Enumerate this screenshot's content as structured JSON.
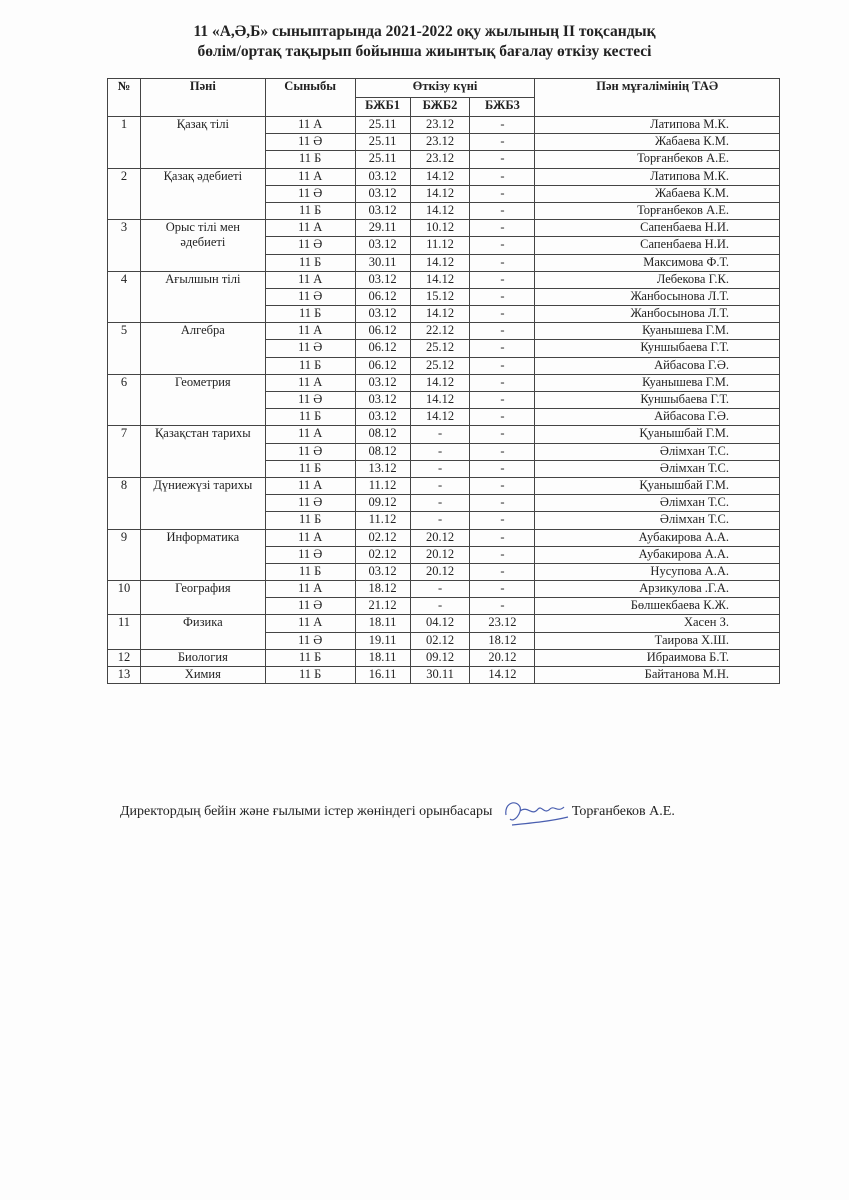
{
  "title": {
    "line1": "11 «А,Ә,Б» сыныптарында 2021-2022 оқу жылының II тоқсандық",
    "line2": "бөлім/ортақ тақырып бойынша жиынтық бағалау өткізу кестесі"
  },
  "table": {
    "headers": {
      "no": "№",
      "subject": "Пәні",
      "class": "Сыныбы",
      "date_group": "Өткізу күні",
      "bzhb1": "БЖБ1",
      "bzhb2": "БЖБ2",
      "bzhb3": "БЖБ3",
      "teacher": "Пән мұғалімінің ТАӘ"
    },
    "groups": [
      {
        "no": "1",
        "subject": "Қазақ тілі",
        "rows": [
          [
            "11 А",
            "25.11",
            "23.12",
            "-",
            "Латипова М.К."
          ],
          [
            "11 Ә",
            "25.11",
            "23.12",
            "-",
            "Жабаева К.М."
          ],
          [
            "11 Б",
            "25.11",
            "23.12",
            "-",
            "Торғанбеков А.Е."
          ]
        ]
      },
      {
        "no": "2",
        "subject": "Қазақ әдебиеті",
        "rows": [
          [
            "11 А",
            "03.12",
            "14.12",
            "-",
            "Латипова М.К."
          ],
          [
            "11 Ә",
            "03.12",
            "14.12",
            "-",
            "Жабаева К.М."
          ],
          [
            "11 Б",
            "03.12",
            "14.12",
            "-",
            "Торғанбеков А.Е."
          ]
        ]
      },
      {
        "no": "3",
        "subject": "Орыс тілі мен әдебиеті",
        "rows": [
          [
            "11 А",
            "29.11",
            "10.12",
            "-",
            "Сапенбаева Н.И."
          ],
          [
            "11 Ә",
            "03.12",
            "11.12",
            "-",
            "Сапенбаева Н.И."
          ],
          [
            "11 Б",
            "30.11",
            "14.12",
            "-",
            "Максимова Ф.Т."
          ]
        ]
      },
      {
        "no": "4",
        "subject": "Ағылшын тілі",
        "rows": [
          [
            "11 А",
            "03.12",
            "14.12",
            "-",
            "Лебекова Г.К."
          ],
          [
            "11 Ә",
            "06.12",
            "15.12",
            "-",
            "Жанбосынова Л.Т."
          ],
          [
            "11 Б",
            "03.12",
            "14.12",
            "-",
            "Жанбосынова Л.Т."
          ]
        ]
      },
      {
        "no": "5",
        "subject": "Алгебра",
        "rows": [
          [
            "11 А",
            "06.12",
            "22.12",
            "-",
            "Куанышева Г.М."
          ],
          [
            "11 Ә",
            "06.12",
            "25.12",
            "-",
            "Куншыбаева Г.Т."
          ],
          [
            "11 Б",
            "06.12",
            "25.12",
            "-",
            "Айбасова Г.Ә."
          ]
        ]
      },
      {
        "no": "6",
        "subject": "Геометрия",
        "rows": [
          [
            "11 А",
            "03.12",
            "14.12",
            "-",
            "Куанышева Г.М."
          ],
          [
            "11 Ә",
            "03.12",
            "14.12",
            "-",
            "Куншыбаева Г.Т."
          ],
          [
            "11 Б",
            "03.12",
            "14.12",
            "-",
            "Айбасова Г.Ә."
          ]
        ]
      },
      {
        "no": "7",
        "subject": "Қазақстан тарихы",
        "rows": [
          [
            "11 А",
            "08.12",
            "-",
            "-",
            "Қуанышбай Г.М."
          ],
          [
            "11 Ә",
            "08.12",
            "-",
            "-",
            "Әлімхан Т.С."
          ],
          [
            "11 Б",
            "13.12",
            "-",
            "-",
            "Әлімхан Т.С."
          ]
        ]
      },
      {
        "no": "8",
        "subject": "Дүниежүзі тарихы",
        "rows": [
          [
            "11 А",
            "11.12",
            "-",
            "-",
            "Қуанышбай Г.М."
          ],
          [
            "11 Ә",
            "09.12",
            "-",
            "-",
            "Әлімхан Т.С."
          ],
          [
            "11 Б",
            "11.12",
            "-",
            "-",
            "Әлімхан Т.С."
          ]
        ]
      },
      {
        "no": "9",
        "subject": "Информатика",
        "rows": [
          [
            "11 А",
            "02.12",
            "20.12",
            "-",
            "Аубакирова А.А."
          ],
          [
            "11 Ә",
            "02.12",
            "20.12",
            "-",
            "Аубакирова А.А."
          ],
          [
            "11 Б",
            "03.12",
            "20.12",
            "-",
            "Нусупова А.А."
          ]
        ]
      },
      {
        "no": "10",
        "subject": "География",
        "rows": [
          [
            "11 А",
            "18.12",
            "-",
            "-",
            "Арзикулова .Г.А."
          ],
          [
            "11 Ә",
            "21.12",
            "-",
            "-",
            "Бөлшекбаева К.Ж."
          ]
        ]
      },
      {
        "no": "11",
        "subject": "Физика",
        "rows": [
          [
            "11 А",
            "18.11",
            "04.12",
            "23.12",
            "Хасен З."
          ],
          [
            "11 Ә",
            "19.11",
            "02.12",
            "18.12",
            "Таирова Х.Ш."
          ]
        ]
      },
      {
        "no": "12",
        "subject": "Биология",
        "rows": [
          [
            "11 Б",
            "18.11",
            "09.12",
            "20.12",
            "Ибраимова Б.Т."
          ]
        ]
      },
      {
        "no": "13",
        "subject": "Химия",
        "rows": [
          [
            "11 Б",
            "16.11",
            "30.11",
            "14.12",
            "Байтанова М.Н."
          ]
        ]
      }
    ]
  },
  "footer": {
    "position": "Директордың бейін және ғылыми істер жөніндегі орынбасары",
    "name": "Торғанбеков А.Е.",
    "signature_color": "#4a5fb0"
  }
}
